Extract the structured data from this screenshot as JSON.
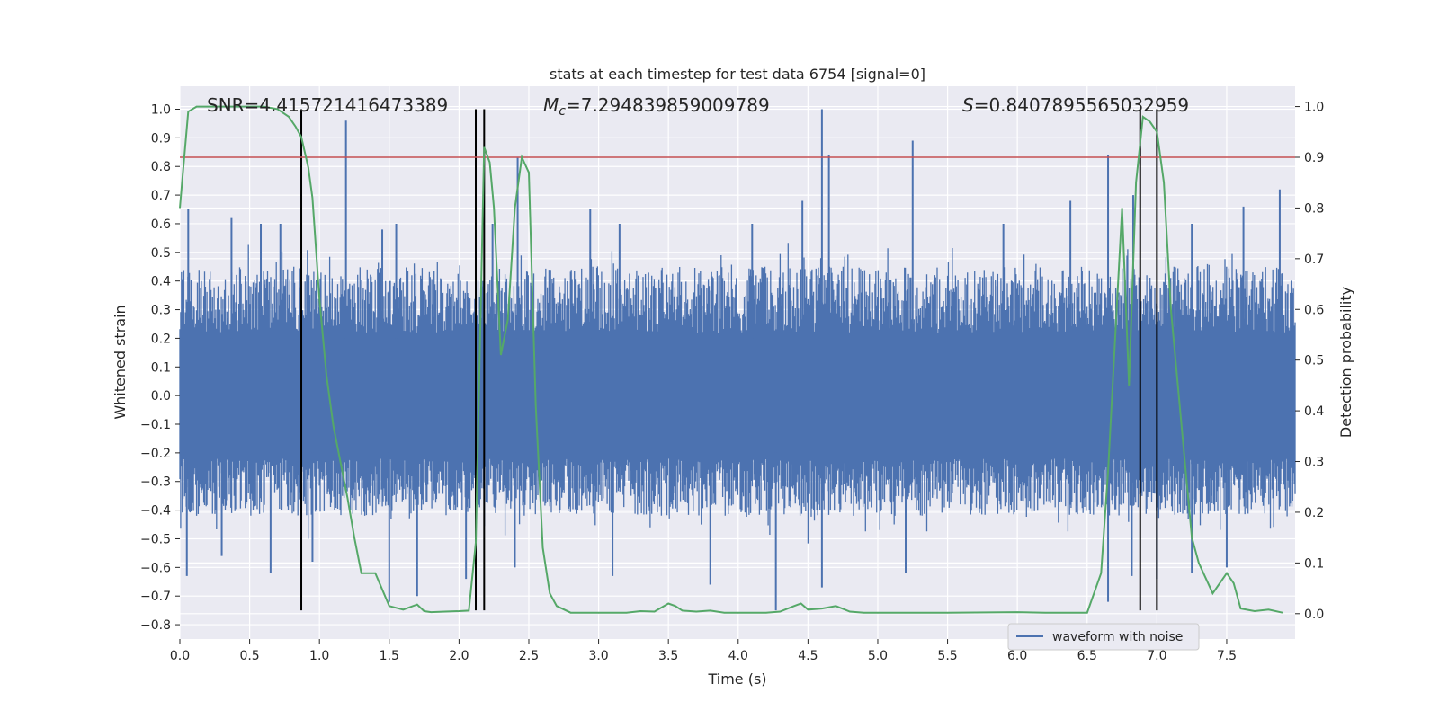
{
  "chart_data": {
    "type": "line",
    "title": "stats at each timestep for test data 6754 [signal=0]",
    "xlabel": "Time (s)",
    "ylabel_left": "Whitened strain",
    "ylabel_right": "Detection probability",
    "xlim": [
      0.0,
      7.99
    ],
    "ylim_left": [
      -0.85,
      1.08
    ],
    "ylim_right": [
      -0.05,
      1.04
    ],
    "xticks": [
      "0.0",
      "0.5",
      "1.0",
      "1.5",
      "2.0",
      "2.5",
      "3.0",
      "3.5",
      "4.0",
      "4.5",
      "5.0",
      "5.5",
      "6.0",
      "6.5",
      "7.0",
      "7.5"
    ],
    "xtick_values": [
      0,
      0.5,
      1,
      1.5,
      2,
      2.5,
      3,
      3.5,
      4,
      4.5,
      5,
      5.5,
      6,
      6.5,
      7,
      7.5
    ],
    "yticks_left": [
      "1.0",
      "0.9",
      "0.8",
      "0.7",
      "0.6",
      "0.5",
      "0.4",
      "0.3",
      "0.2",
      "0.1",
      "0.0",
      "−0.1",
      "−0.2",
      "−0.3",
      "−0.4",
      "−0.5",
      "−0.6",
      "−0.7",
      "−0.8"
    ],
    "ytick_values_left": [
      1.0,
      0.9,
      0.8,
      0.7,
      0.6,
      0.5,
      0.4,
      0.3,
      0.2,
      0.1,
      0.0,
      -0.1,
      -0.2,
      -0.3,
      -0.4,
      -0.5,
      -0.6,
      -0.7,
      -0.8
    ],
    "yticks_right": [
      "1.0",
      "0.9",
      "0.8",
      "0.7",
      "0.6",
      "0.5",
      "0.4",
      "0.3",
      "0.2",
      "0.1",
      "0.0"
    ],
    "ytick_values_right": [
      1.0,
      0.9,
      0.8,
      0.7,
      0.6,
      0.5,
      0.4,
      0.3,
      0.2,
      0.1,
      0.0
    ],
    "grid": true,
    "legend": {
      "entries": [
        "waveform with noise"
      ],
      "location": "lower-right"
    },
    "annotations": {
      "snr": "SNR=4.415721416473389",
      "mc_prefix": "M",
      "mc_sub": "c",
      "mc_value": "=7.294839859009789",
      "s_prefix": "S",
      "s_value": "=0.8407895565032959"
    },
    "threshold_probability": 0.9,
    "vertical_lines_time": [
      0.87,
      2.12,
      2.18,
      6.88,
      7.0
    ],
    "vertical_line_range": [
      -0.75,
      1.0
    ],
    "waveform": {
      "name": "waveform with noise",
      "color": "#4c72b0",
      "envelope_upper": 0.45,
      "envelope_lower": -0.42,
      "positive_spikes": [
        [
          0.06,
          0.65
        ],
        [
          0.37,
          0.62
        ],
        [
          0.58,
          0.6
        ],
        [
          0.72,
          0.6
        ],
        [
          1.19,
          0.96
        ],
        [
          1.45,
          0.58
        ],
        [
          1.55,
          0.6
        ],
        [
          2.24,
          0.6
        ],
        [
          2.42,
          0.83
        ],
        [
          2.94,
          0.65
        ],
        [
          3.15,
          0.6
        ],
        [
          4.1,
          0.6
        ],
        [
          4.46,
          0.68
        ],
        [
          4.6,
          1.0
        ],
        [
          4.65,
          0.84
        ],
        [
          5.25,
          0.89
        ],
        [
          5.9,
          0.6
        ],
        [
          6.38,
          0.68
        ],
        [
          6.65,
          0.84
        ],
        [
          6.83,
          0.7
        ],
        [
          7.25,
          0.6
        ],
        [
          7.62,
          0.66
        ],
        [
          7.88,
          0.72
        ]
      ],
      "negative_spikes": [
        [
          0.05,
          -0.63
        ],
        [
          0.3,
          -0.56
        ],
        [
          0.65,
          -0.62
        ],
        [
          0.95,
          -0.58
        ],
        [
          1.5,
          -0.72
        ],
        [
          1.7,
          -0.7
        ],
        [
          2.05,
          -0.64
        ],
        [
          2.4,
          -0.6
        ],
        [
          3.1,
          -0.63
        ],
        [
          3.8,
          -0.66
        ],
        [
          4.27,
          -0.75
        ],
        [
          4.6,
          -0.67
        ],
        [
          5.2,
          -0.62
        ],
        [
          6.65,
          -0.72
        ],
        [
          6.82,
          -0.63
        ],
        [
          7.0,
          -0.64
        ],
        [
          7.25,
          -0.62
        ],
        [
          7.5,
          -0.6
        ]
      ]
    },
    "detection_probability": {
      "color": "#55a868",
      "t": [
        0.0,
        0.06,
        0.12,
        0.2,
        0.3,
        0.4,
        0.5,
        0.6,
        0.7,
        0.78,
        0.83,
        0.87,
        0.92,
        0.95,
        1.0,
        1.05,
        1.1,
        1.2,
        1.25,
        1.3,
        1.4,
        1.5,
        1.6,
        1.7,
        1.75,
        1.8,
        1.9,
        2.0,
        2.07,
        2.12,
        2.18,
        2.22,
        2.25,
        2.3,
        2.35,
        2.4,
        2.45,
        2.5,
        2.55,
        2.6,
        2.65,
        2.7,
        2.8,
        3.0,
        3.2,
        3.3,
        3.4,
        3.5,
        3.55,
        3.6,
        3.7,
        3.8,
        3.9,
        4.0,
        4.2,
        4.3,
        4.4,
        4.45,
        4.5,
        4.6,
        4.7,
        4.8,
        4.9,
        5.0,
        5.5,
        6.0,
        6.2,
        6.5,
        6.6,
        6.65,
        6.75,
        6.8,
        6.85,
        6.9,
        6.95,
        7.0,
        7.05,
        7.1,
        7.2,
        7.25,
        7.3,
        7.4,
        7.5,
        7.55,
        7.6,
        7.7,
        7.8,
        7.9
      ],
      "p": [
        0.8,
        0.99,
        1.0,
        1.0,
        1.0,
        1.0,
        1.0,
        1.0,
        0.995,
        0.98,
        0.96,
        0.94,
        0.88,
        0.82,
        0.62,
        0.47,
        0.37,
        0.23,
        0.15,
        0.08,
        0.08,
        0.015,
        0.008,
        0.018,
        0.005,
        0.003,
        0.004,
        0.005,
        0.006,
        0.14,
        0.92,
        0.89,
        0.8,
        0.51,
        0.58,
        0.8,
        0.9,
        0.87,
        0.41,
        0.13,
        0.04,
        0.015,
        0.002,
        0.002,
        0.002,
        0.005,
        0.004,
        0.02,
        0.015,
        0.006,
        0.004,
        0.006,
        0.002,
        0.002,
        0.002,
        0.004,
        0.015,
        0.02,
        0.008,
        0.01,
        0.015,
        0.004,
        0.002,
        0.002,
        0.002,
        0.003,
        0.002,
        0.002,
        0.08,
        0.28,
        0.8,
        0.45,
        0.85,
        0.98,
        0.97,
        0.95,
        0.85,
        0.6,
        0.3,
        0.15,
        0.1,
        0.04,
        0.08,
        0.06,
        0.01,
        0.005,
        0.008,
        0.002
      ]
    }
  },
  "colors": {
    "plot_bg": "#eaeaf2",
    "grid": "#ffffff",
    "waveform": "#4c72b0",
    "probability": "#55a868",
    "threshold": "#c44e52",
    "vline": "#000000"
  }
}
